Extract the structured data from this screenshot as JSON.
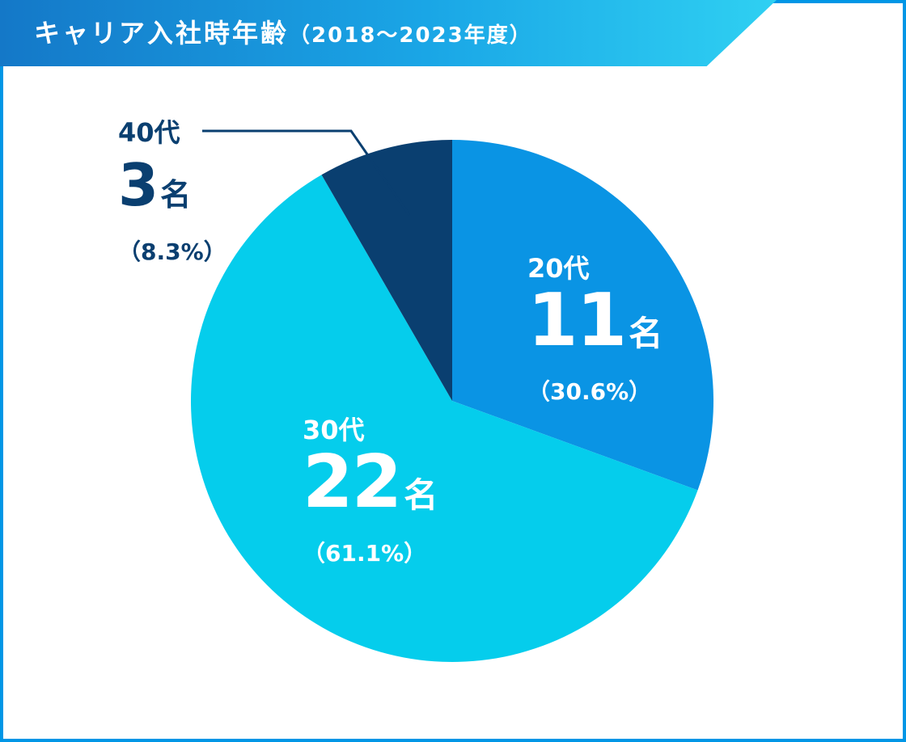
{
  "header": {
    "title": "キャリア入社時年齢",
    "subtitle": "（2018～2023年度）"
  },
  "colors": {
    "frame": "#0096e6",
    "twenties": "#0a94e4",
    "thirties": "#05cdec",
    "forties": "#0a3f70",
    "leader_line": "#0a3f70",
    "inside_text": "#ffffff",
    "outside_text": "#0a3f70"
  },
  "chart_data": {
    "type": "pie",
    "slices": [
      {
        "label": "20代",
        "value": 11,
        "unit": "名",
        "percent": "（30.6%）",
        "color": "#0a94e4"
      },
      {
        "label": "30代",
        "value": 22,
        "unit": "名",
        "percent": "（61.1%）",
        "color": "#05cdec"
      },
      {
        "label": "40代",
        "value": 3,
        "unit": "名",
        "percent": "（8.3%）",
        "color": "#0a3f70"
      }
    ],
    "start": "12 o'clock",
    "direction": "clockwise"
  }
}
